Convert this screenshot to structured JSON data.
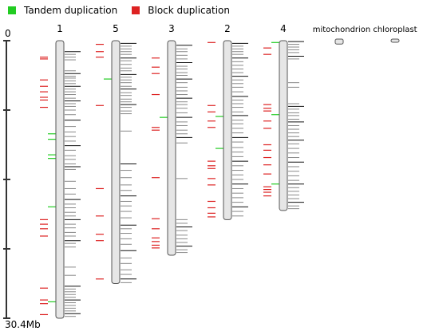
{
  "legend": {
    "items": [
      {
        "label": "Tandem duplication",
        "color": "#22cc22"
      },
      {
        "label": "Block duplication",
        "color": "#dd2222"
      }
    ]
  },
  "scale": {
    "top_label": "0",
    "bottom_label": "30.4Mb",
    "max_mb": 30.4,
    "tick_mb": [
      0,
      7.6,
      15.2,
      22.8,
      30.4
    ]
  },
  "colors": {
    "tandem": "#22cc22",
    "block": "#dd2222",
    "gene": "#000000",
    "chromosome_fill": "#e6e6e6",
    "chromosome_stroke": "#555555"
  },
  "chromosomes": [
    {
      "name": "1",
      "length_mb": 30.4,
      "block_mb": [
        1.8,
        2.0,
        4.3,
        5.0,
        5.6,
        6.2,
        6.5,
        7.3,
        19.6,
        20.1,
        20.6,
        21.4,
        27.1,
        28.4,
        28.8,
        30.0
      ],
      "tandem_mb": [
        10.2,
        10.8,
        12.5,
        12.9,
        18.2,
        28.6
      ],
      "gene_mb": [
        1.2,
        1.5,
        1.8,
        2.1,
        3.3,
        3.6,
        3.9,
        4.1,
        4.4,
        4.7,
        5.0,
        5.3,
        5.6,
        5.9,
        6.3,
        6.6,
        6.9,
        7.2,
        7.6,
        8.1,
        8.7,
        9.4,
        10.0,
        10.5,
        11.0,
        11.5,
        12.0,
        12.6,
        13.0,
        13.5,
        13.8,
        14.1,
        15.4,
        16.2,
        16.8,
        17.4,
        17.9,
        18.3,
        18.8,
        19.2,
        19.6,
        20.1,
        20.5,
        21.0,
        21.4,
        21.9,
        22.2,
        22.6,
        24.8,
        25.7,
        26.9,
        27.2,
        27.5,
        27.8,
        28.1,
        28.4,
        28.7,
        29.0,
        29.3,
        29.6,
        29.9,
        30.2
      ]
    },
    {
      "name": "5",
      "length_mb": 26.6,
      "block_mb": [
        0.4,
        1.2,
        1.8,
        7.1,
        16.2,
        19.2,
        21.2,
        21.9,
        26.1
      ],
      "tandem_mb": [
        4.2
      ],
      "gene_mb": [
        0.3,
        0.6,
        0.9,
        1.2,
        1.5,
        1.9,
        2.2,
        2.6,
        3.0,
        3.3,
        3.7,
        4.0,
        4.3,
        4.6,
        5.0,
        5.3,
        5.7,
        6.0,
        6.4,
        6.7,
        7.0,
        7.3,
        7.7,
        8.0,
        9.9,
        13.5,
        14.2,
        15.0,
        15.8,
        16.4,
        17.0,
        17.6,
        18.1,
        18.7,
        19.4,
        20.2,
        20.6,
        21.1,
        21.7,
        22.3,
        23.0,
        23.8,
        24.4,
        25.1,
        25.6,
        26.1,
        26.5
      ]
    },
    {
      "name": "3",
      "length_mb": 23.5,
      "block_mb": [
        1.9,
        2.9,
        3.6,
        5.9,
        9.5,
        9.8,
        15.0,
        19.5,
        20.6,
        21.6,
        22.0,
        22.4,
        22.7
      ],
      "tandem_mb": [
        8.4
      ],
      "gene_mb": [
        0.5,
        0.9,
        1.2,
        1.6,
        2.0,
        2.4,
        2.8,
        3.1,
        3.5,
        3.8,
        4.2,
        4.6,
        5.1,
        5.5,
        5.9,
        6.3,
        6.7,
        7.0,
        7.4,
        7.9,
        8.4,
        8.9,
        9.3,
        9.8,
        10.2,
        10.6,
        11.2,
        15.1,
        19.6,
        20.0,
        20.4,
        20.8,
        21.3,
        21.7,
        22.1,
        22.5,
        22.9,
        23.2
      ]
    },
    {
      "name": "2",
      "length_mb": 19.6,
      "block_mb": [
        0.2,
        7.1,
        7.8,
        8.8,
        9.5,
        13.2,
        13.7,
        14.0,
        15.1,
        15.8,
        17.6,
        18.3,
        18.9,
        19.3
      ],
      "tandem_mb": [
        8.3,
        11.8
      ],
      "gene_mb": [
        0.3,
        0.6,
        0.9,
        1.2,
        1.5,
        1.9,
        2.3,
        2.7,
        3.1,
        3.5,
        3.9,
        4.3,
        4.7,
        5.1,
        5.6,
        6.1,
        6.5,
        6.9,
        7.3,
        7.8,
        8.2,
        8.7,
        9.1,
        9.6,
        10.1,
        10.6,
        11.1,
        11.7,
        12.2,
        12.7,
        13.2,
        13.7,
        14.2,
        14.7,
        15.2,
        15.7,
        16.2,
        16.7,
        17.2,
        17.7,
        18.2,
        18.7,
        19.2
      ]
    },
    {
      "name": "4",
      "length_mb": 18.6,
      "block_mb": [
        0.8,
        1.5,
        7.0,
        7.4,
        7.7,
        8.8,
        9.6,
        11.4,
        12.0,
        12.8,
        13.6,
        14.6,
        16.0,
        16.3,
        16.6,
        17.0
      ],
      "tandem_mb": [
        0.2,
        8.1,
        15.7
      ],
      "gene_mb": [
        0.1,
        0.4,
        0.7,
        1.0,
        1.3,
        1.7,
        2.0,
        4.6,
        5.1,
        6.9,
        7.2,
        7.5,
        7.9,
        8.2,
        8.6,
        8.9,
        9.3,
        9.7,
        10.1,
        10.5,
        10.9,
        11.3,
        11.8,
        12.3,
        12.8,
        13.3,
        13.8,
        14.3,
        14.8,
        15.3,
        15.7,
        16.1,
        16.5,
        16.9,
        17.3,
        17.7,
        18.1,
        18.4
      ]
    }
  ],
  "organelles": [
    {
      "name": "mitochondrion",
      "length_mb": 0.37
    },
    {
      "name": "chloroplast",
      "length_mb": 0.15
    }
  ]
}
